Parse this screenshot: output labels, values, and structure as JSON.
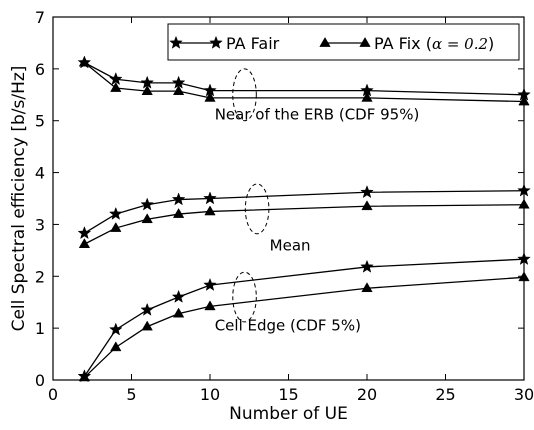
{
  "chart_data": {
    "type": "line",
    "xlabel": "Number of UE",
    "ylabel": "Cell Spectral efficiency [b/s/Hz]",
    "xlim": [
      0,
      30
    ],
    "ylim": [
      0,
      7
    ],
    "xticks": [
      0,
      5,
      10,
      15,
      20,
      25,
      30
    ],
    "yticks": [
      0,
      1,
      2,
      3,
      4,
      5,
      6,
      7
    ],
    "grid": false,
    "legend_position": "top-right",
    "x": [
      2,
      4,
      6,
      8,
      10,
      20,
      30
    ],
    "series": [
      {
        "name": "PA Fair",
        "group": "Near of the ERB (CDF 95%)",
        "marker": "star",
        "values": [
          6.12,
          5.8,
          5.73,
          5.73,
          5.58,
          5.58,
          5.5
        ]
      },
      {
        "name": "PA Fix",
        "group": "Near of the ERB (CDF 95%)",
        "marker": "triangle",
        "values": [
          6.12,
          5.63,
          5.57,
          5.57,
          5.44,
          5.44,
          5.37
        ]
      },
      {
        "name": "PA Fair",
        "group": "Mean",
        "marker": "star",
        "values": [
          2.83,
          3.2,
          3.38,
          3.48,
          3.5,
          3.62,
          3.65
        ]
      },
      {
        "name": "PA Fix",
        "group": "Mean",
        "marker": "triangle",
        "values": [
          2.62,
          2.93,
          3.1,
          3.2,
          3.25,
          3.35,
          3.38
        ]
      },
      {
        "name": "PA Fair",
        "group": "Cell Edge (CDF 5%)",
        "marker": "star",
        "values": [
          0.07,
          0.97,
          1.35,
          1.6,
          1.83,
          2.18,
          2.33
        ]
      },
      {
        "name": "PA Fix",
        "group": "Cell Edge (CDF 5%)",
        "marker": "triangle",
        "values": [
          0.05,
          0.63,
          1.03,
          1.28,
          1.42,
          1.77,
          1.98
        ]
      }
    ],
    "legend": [
      {
        "label": "PA Fair",
        "marker": "star"
      },
      {
        "label": "PA Fix (",
        "math": "α = 0.2",
        "suffix": ")",
        "marker": "triangle"
      }
    ],
    "annotations": [
      {
        "text": "Near of the ERB (CDF 95%)",
        "x": 10.3,
        "y": 5.02,
        "ellipse_center": [
          12.2,
          5.5
        ],
        "ellipse_radii": [
          0.75,
          0.5
        ]
      },
      {
        "text": "Mean",
        "x": 13.8,
        "y": 2.5,
        "ellipse_center": [
          13.0,
          3.3
        ],
        "ellipse_radii": [
          0.75,
          0.48
        ]
      },
      {
        "text": "Cell Edge (CDF 5%)",
        "x": 10.3,
        "y": 0.95,
        "ellipse_center": [
          12.2,
          1.6
        ],
        "ellipse_radii": [
          0.75,
          0.48
        ]
      }
    ]
  }
}
